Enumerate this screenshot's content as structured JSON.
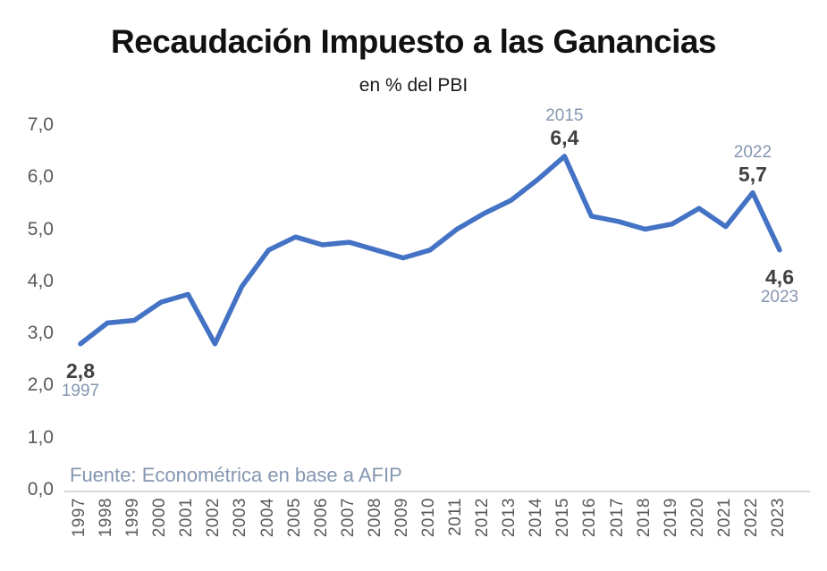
{
  "chart_data": {
    "type": "line",
    "title": "Recaudación Impuesto a las Ganancias",
    "subtitle": "en % del PBI",
    "source": "Fuente: Econométrica en base a AFIP",
    "x": [
      1997,
      1998,
      1999,
      2000,
      2001,
      2002,
      2003,
      2004,
      2005,
      2006,
      2007,
      2008,
      2009,
      2010,
      2011,
      2012,
      2013,
      2014,
      2015,
      2016,
      2017,
      2018,
      2019,
      2020,
      2021,
      2022,
      2023
    ],
    "values": [
      2.8,
      3.2,
      3.25,
      3.6,
      3.75,
      2.8,
      3.9,
      4.6,
      4.85,
      4.7,
      4.75,
      4.6,
      4.45,
      4.6,
      5.0,
      5.3,
      5.55,
      5.95,
      6.4,
      5.25,
      5.15,
      5.0,
      5.1,
      5.4,
      5.05,
      5.7,
      4.6
    ],
    "ylim": [
      0,
      7
    ],
    "yticks": [
      {
        "v": 7,
        "label": "7,0"
      },
      {
        "v": 6,
        "label": "6,0"
      },
      {
        "v": 5,
        "label": "5,0"
      },
      {
        "v": 4,
        "label": "4,0"
      },
      {
        "v": 3,
        "label": "3,0"
      },
      {
        "v": 2,
        "label": "2,0"
      },
      {
        "v": 1,
        "label": "1,0"
      },
      {
        "v": 0,
        "label": "0,0"
      }
    ],
    "grid": false,
    "legend": "none",
    "annotations": [
      {
        "year": 1997,
        "value_label": "2,8",
        "year_label": "1997",
        "position": "below"
      },
      {
        "year": 2015,
        "value_label": "6,4",
        "year_label": "2015",
        "position": "above"
      },
      {
        "year": 2022,
        "value_label": "5,7",
        "year_label": "2022",
        "position": "above"
      },
      {
        "year": 2023,
        "value_label": "4,6",
        "year_label": "2023",
        "position": "below"
      }
    ]
  },
  "colors": {
    "line": "#4472C4",
    "annotation_value": "#404040",
    "annotation_year": "#8496B0",
    "axis_text": "#595959",
    "source_text": "#8496B0",
    "axis_line": "#d8d8d8"
  }
}
